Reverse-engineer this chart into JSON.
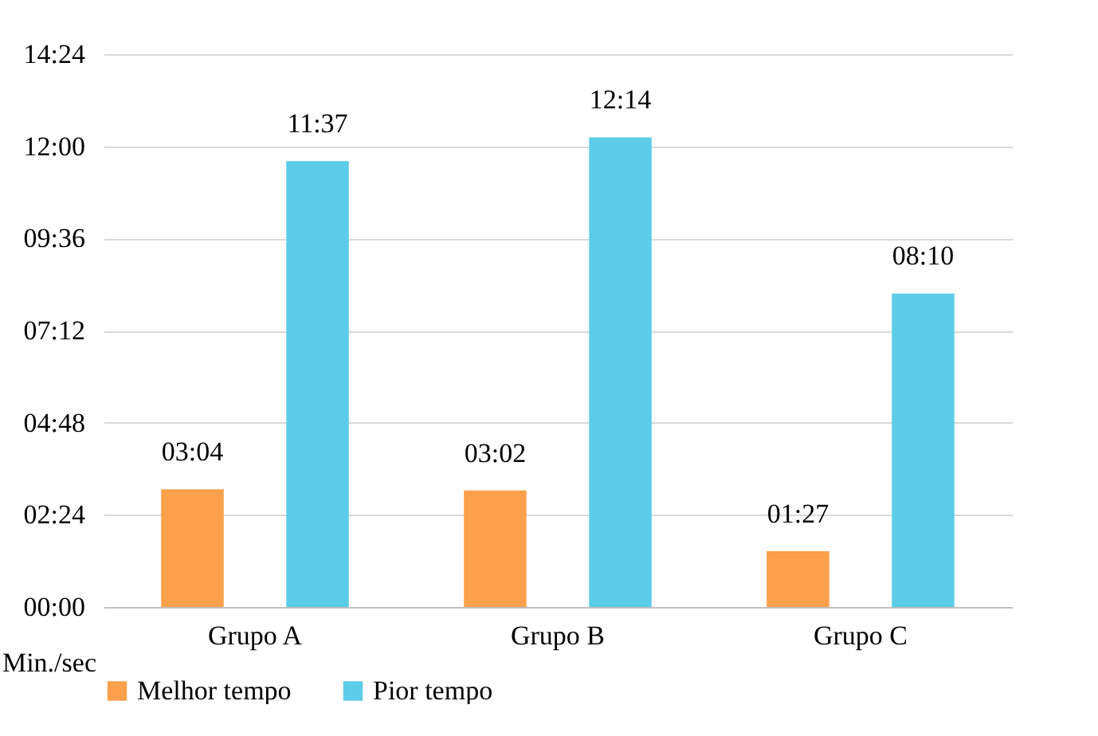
{
  "chart_data": {
    "type": "bar",
    "categories": [
      "Grupo A",
      "Grupo B",
      "Grupo C"
    ],
    "series": [
      {
        "name": "Melhor tempo",
        "color": "#fba04c",
        "values": [
          184,
          182,
          87
        ],
        "value_labels": [
          "03:04",
          "03:02",
          "01:27"
        ]
      },
      {
        "name": "Pior tempo",
        "color": "#5ccde8",
        "values": [
          697,
          734,
          490
        ],
        "value_labels": [
          "11:37",
          "12:14",
          "08:10"
        ]
      }
    ],
    "ylabel": "Min./sec",
    "ylim": [
      0,
      864
    ],
    "yticks": [
      {
        "value": 0,
        "label": "00:00"
      },
      {
        "value": 144,
        "label": "02:24"
      },
      {
        "value": 288,
        "label": "04:48"
      },
      {
        "value": 432,
        "label": "07:12"
      },
      {
        "value": 576,
        "label": "09:36"
      },
      {
        "value": 720,
        "label": "12:00"
      },
      {
        "value": 864,
        "label": "14:24"
      }
    ],
    "grid": "y",
    "legend": "bottom"
  }
}
